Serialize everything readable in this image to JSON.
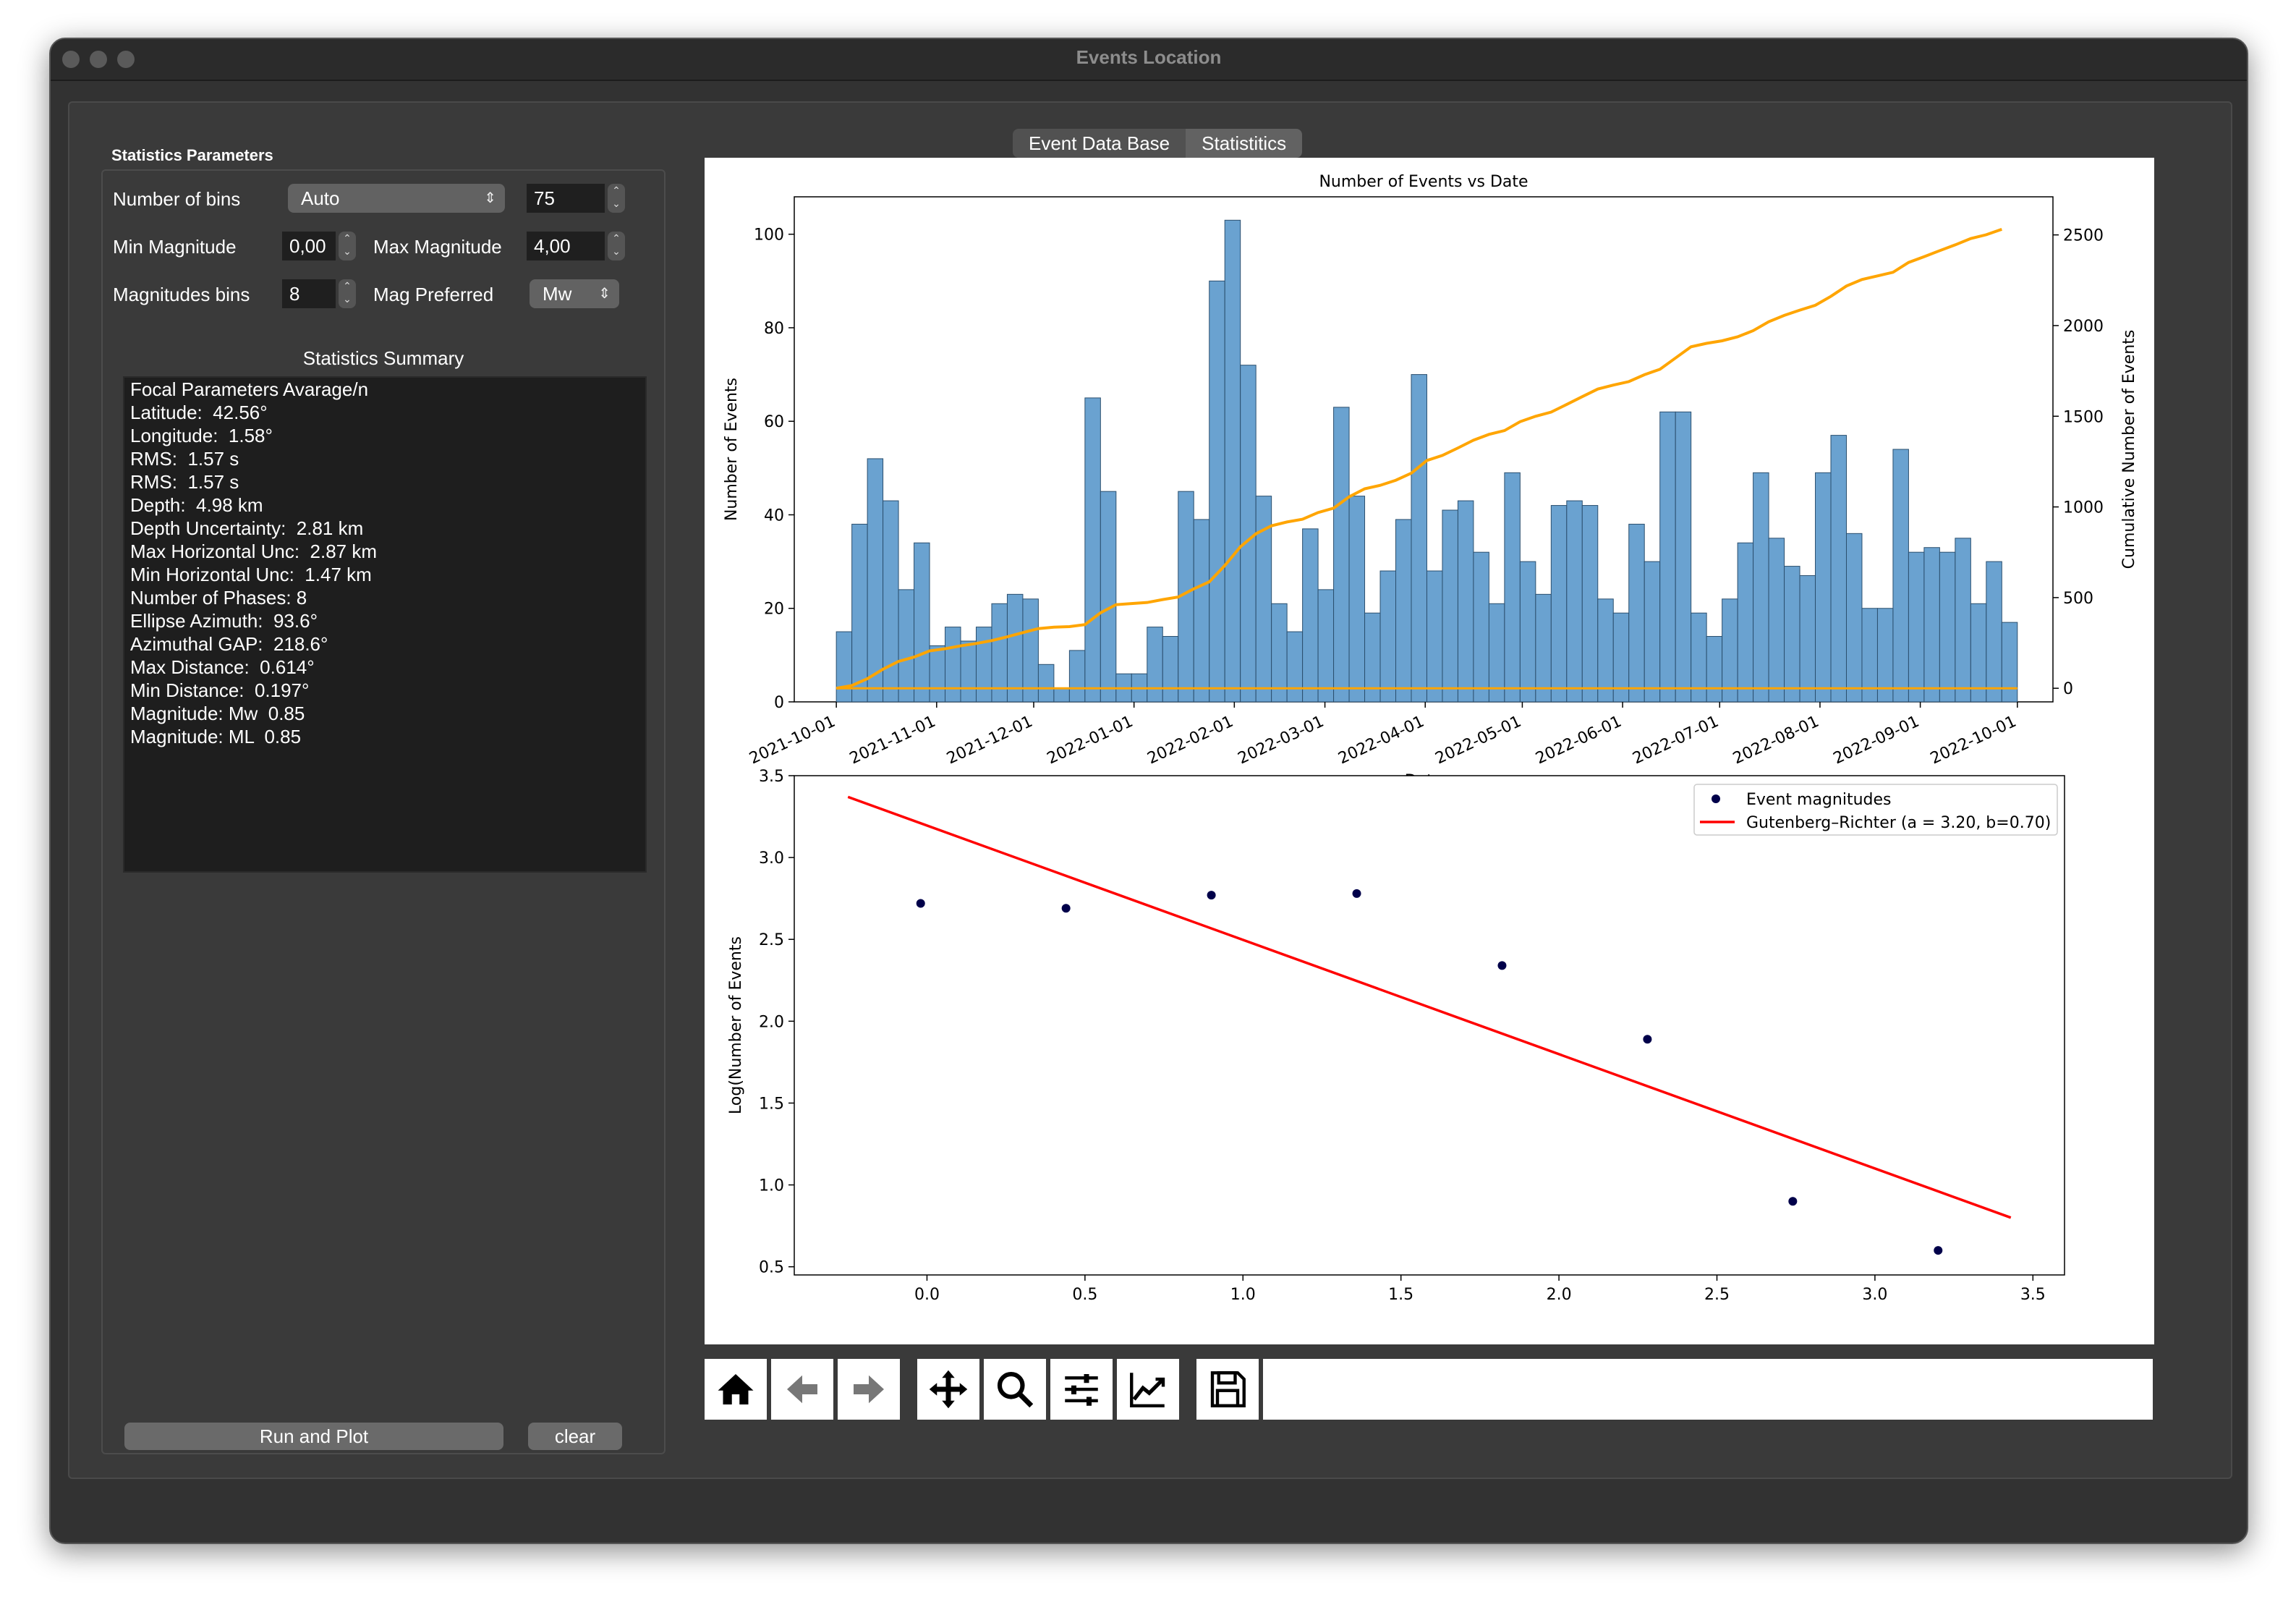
{
  "window": {
    "title": "Events Location"
  },
  "tabs": [
    {
      "label": "Event Data Base"
    },
    {
      "label": "Statistitics"
    }
  ],
  "params": {
    "group_title": "Statistics Parameters",
    "nbins_label": "Number of bins",
    "nbins_mode": "Auto",
    "nbins_value": "75",
    "min_mag_label": "Min Magnitude",
    "min_mag_value": "0,00",
    "max_mag_label": "Max Magnitude",
    "max_mag_value": "4,00",
    "mag_bins_label": "Magnitudes bins",
    "mag_bins_value": "8",
    "mag_pref_label": "Mag Preferred",
    "mag_pref_value": "Mw"
  },
  "summary": {
    "title": "Statistics Summary",
    "lines": [
      "Focal Parameters Avarage/n",
      "Latitude:  42.56°",
      "Longitude:  1.58°",
      "RMS:  1.57 s",
      "RMS:  1.57 s",
      "Depth:  4.98 km",
      "Depth Uncertainty:  2.81 km",
      "Max Horizontal Unc:  2.87 km",
      "Min Horizontal Unc:  1.47 km",
      "Number of Phases: 8",
      "Ellipse Azimuth:  93.6°",
      "Azimuthal GAP:  218.6°",
      "Max Distance:  0.614°",
      "Min Distance:  0.197°",
      "Magnitude: Mw  0.85",
      "Magnitude: ML  0.85"
    ]
  },
  "buttons": {
    "run": "Run and Plot",
    "clear": "clear"
  },
  "toolbar": {
    "tools": [
      "home-icon",
      "back-icon",
      "forward-icon",
      "pan-icon",
      "zoom-icon",
      "configure-subplots-icon",
      "edit-axis-icon",
      "save-icon"
    ]
  },
  "colors": {
    "bars": "#6aa2d0",
    "cumulative": "#ffa500",
    "gr_line": "#ff0000",
    "points": "#00004a"
  },
  "chart_data": [
    {
      "type": "bar",
      "title": "Number of Events vs Date",
      "ylabel": "Number of Events",
      "y2label": "Cumulative Number of  Events",
      "xlabel": "Date",
      "x_ticks": [
        "2021-10-01",
        "2021-11-01",
        "2021-12-01",
        "2022-01-01",
        "2022-02-01",
        "2022-03-01",
        "2022-04-01",
        "2022-05-01",
        "2022-06-01",
        "2022-07-01",
        "2022-08-01",
        "2022-09-01",
        "2022-10-01"
      ],
      "ylim": [
        0,
        108
      ],
      "y2lim": [
        -75,
        2710
      ],
      "y_ticks": [
        0,
        20,
        40,
        60,
        80,
        100
      ],
      "y2_ticks": [
        0,
        500,
        1000,
        1500,
        2000,
        2500
      ],
      "x_range": [
        "2021-09-18",
        "2022-10-12"
      ],
      "bin_start": "2021-10-01",
      "bin_end": "2022-10-01",
      "values": [
        15,
        38,
        52,
        43,
        24,
        34,
        12,
        16,
        13,
        16,
        21,
        23,
        22,
        8,
        3,
        11,
        65,
        45,
        6,
        6,
        16,
        14,
        45,
        39,
        90,
        103,
        72,
        44,
        21,
        15,
        37,
        24,
        63,
        44,
        19,
        28,
        39,
        70,
        28,
        41,
        43,
        32,
        21,
        49,
        30,
        23,
        42,
        43,
        42,
        22,
        19,
        38,
        30,
        62,
        62,
        19,
        14,
        22,
        34,
        49,
        35,
        29,
        27,
        49,
        57,
        36,
        20,
        20,
        54,
        32,
        33,
        32,
        35,
        21,
        30,
        17
      ],
      "series": [
        {
          "name": "Cumulative",
          "values": [
            0,
            15,
            53,
            105,
            148,
            172,
            206,
            218,
            234,
            247,
            263,
            284,
            307,
            329,
            337,
            340,
            351,
            416,
            461,
            467,
            473,
            489,
            503,
            548,
            587,
            677,
            780,
            852,
            896,
            917,
            932,
            969,
            993,
            1056,
            1100,
            1119,
            1147,
            1186,
            1256,
            1284,
            1325,
            1368,
            1400,
            1421,
            1470,
            1500,
            1523,
            1565,
            1608,
            1650,
            1672,
            1691,
            1729,
            1759,
            1821,
            1883,
            1902,
            1916,
            1938,
            1972,
            2021,
            2056,
            2085,
            2112,
            2161,
            2218,
            2254,
            2274,
            2294,
            2348,
            2380,
            2413,
            2445,
            2480,
            2501,
            2531
          ]
        }
      ]
    },
    {
      "type": "scatter",
      "title": "",
      "xlabel": "",
      "ylabel": "Log(Number of Events",
      "xlim": [
        -0.42,
        3.6
      ],
      "ylim": [
        0.45,
        3.5
      ],
      "x_ticks": [
        0.0,
        0.5,
        1.0,
        1.5,
        2.0,
        2.5,
        3.0,
        3.5
      ],
      "y_ticks": [
        0.5,
        1.0,
        1.5,
        2.0,
        2.5,
        3.0,
        3.5
      ],
      "legend": "top-right",
      "series": [
        {
          "name": "Event magnitudes",
          "x": [
            -0.02,
            0.44,
            0.9,
            1.36,
            1.82,
            2.28,
            2.74,
            3.2
          ],
          "y": [
            2.72,
            2.69,
            2.77,
            2.78,
            2.34,
            1.89,
            0.9,
            0.6
          ]
        },
        {
          "name": "Gutenberg–Richter (a = 3.20, b=0.70)",
          "type": "line",
          "x": [
            -0.25,
            3.43
          ],
          "y": [
            3.37,
            0.8
          ]
        }
      ]
    }
  ]
}
